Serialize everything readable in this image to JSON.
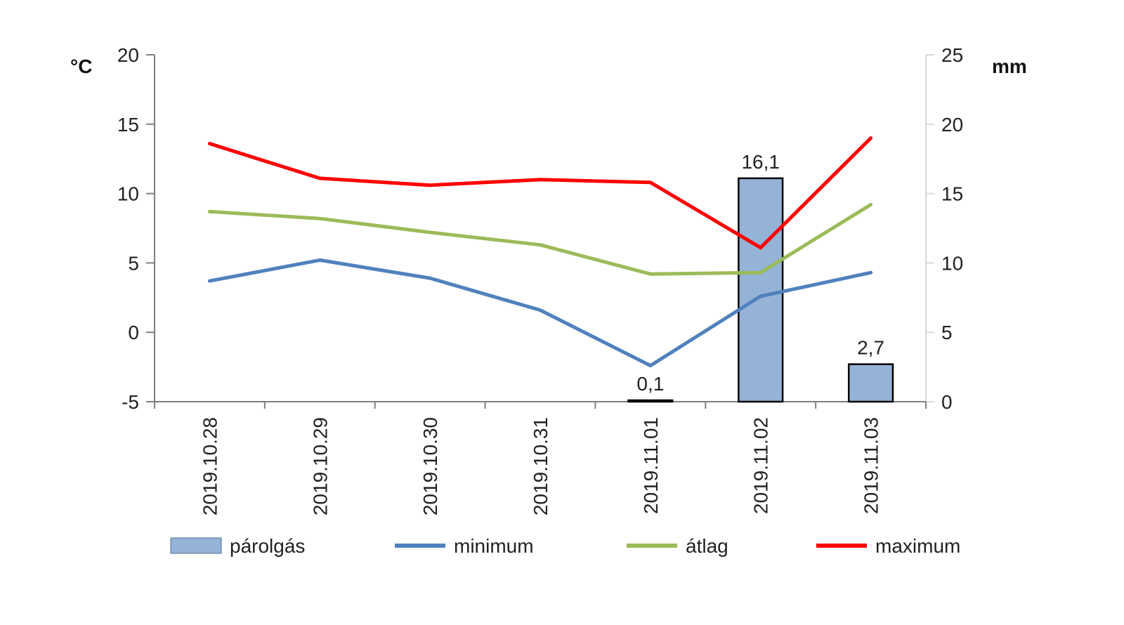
{
  "chart_data": {
    "type": "bar",
    "categories": [
      "2019.10.28",
      "2019.10.29",
      "2019.10.30",
      "2019.10.31",
      "2019.11.01",
      "2019.11.02",
      "2019.11.03"
    ],
    "y_left": {
      "unit": "°C",
      "range": [
        -5,
        20
      ],
      "ticks": [
        "-5",
        "0",
        "5",
        "10",
        "15",
        "20"
      ]
    },
    "y_right": {
      "unit": "mm",
      "range": [
        0,
        25
      ],
      "ticks": [
        "0",
        "5",
        "10",
        "15",
        "20",
        "25"
      ]
    },
    "bars": {
      "name": "párolgás",
      "axis": "right",
      "values": [
        null,
        null,
        null,
        null,
        0.1,
        16.1,
        2.7
      ],
      "labels": [
        "",
        "",
        "",
        "",
        "0,1",
        "16,1",
        "2,7"
      ],
      "color": "#95b3d7"
    },
    "series": [
      {
        "name": "minimum",
        "axis": "left",
        "color": "#4f81bd",
        "values": [
          3.7,
          5.2,
          3.9,
          1.6,
          -2.4,
          2.6,
          4.3
        ]
      },
      {
        "name": "átlag",
        "axis": "left",
        "color": "#9bbb59",
        "values": [
          8.7,
          8.2,
          7.2,
          6.3,
          4.2,
          4.3,
          9.2
        ]
      },
      {
        "name": "maximum",
        "axis": "left",
        "color": "#ff0000",
        "values": [
          13.6,
          11.1,
          10.6,
          11.0,
          10.8,
          6.1,
          14.0
        ]
      }
    ],
    "legend": [
      "párolgás",
      "minimum",
      "átlag",
      "maximum"
    ],
    "legend_position": "bottom",
    "grid": false
  }
}
